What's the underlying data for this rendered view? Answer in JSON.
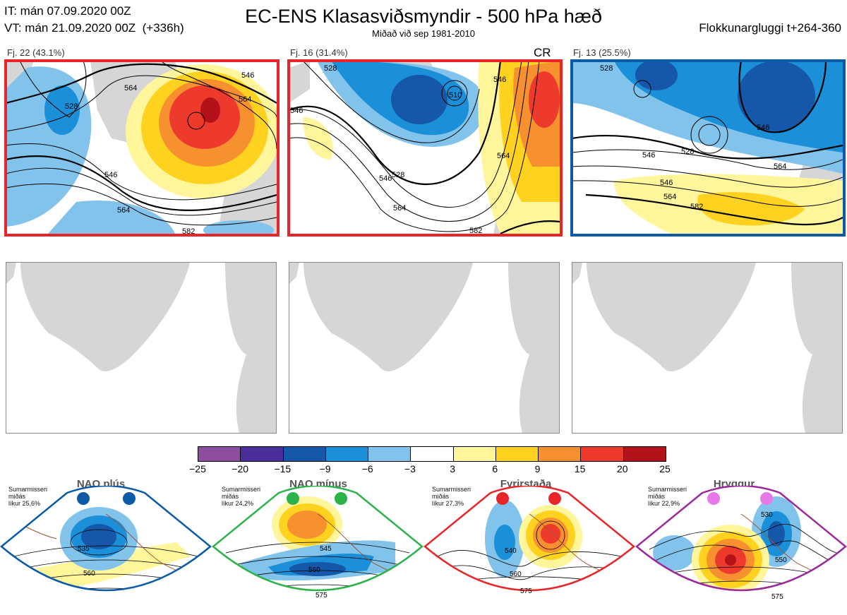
{
  "header": {
    "init_line": "IT: mán 07.09.2020 00Z",
    "valid_line": "VT: mán 21.09.2020 00Z  (+336h)",
    "title": "EC-ENS Klasasviðsmyndir - 500 hPa hæð",
    "subtitle": "Miðað við sep 1981-2010",
    "window": "Flokkunargluggi t+264-360"
  },
  "clusters": [
    {
      "label": "Fj. 22 (43.1%)",
      "border_color": "#e8262a",
      "regime_tag": "",
      "contours": [
        "546",
        "564",
        "546",
        "564",
        "564",
        "582",
        "528"
      ]
    },
    {
      "label": "Fj. 16 (31.4%)",
      "border_color": "#e8262a",
      "regime_tag": "CR",
      "contours": [
        "546",
        "528",
        "510",
        "546",
        "564",
        "546",
        "564",
        "582",
        "528"
      ]
    },
    {
      "label": "Fj. 13 (25.5%)",
      "border_color": "#0a5aa8",
      "regime_tag": "",
      "contours": [
        "546",
        "528",
        "546",
        "564",
        "582",
        "564",
        "546",
        "528"
      ]
    }
  ],
  "colorbar": {
    "ticks": [
      "−25",
      "−20",
      "−15",
      "−9",
      "−6",
      "−3",
      "3",
      "6",
      "9",
      "15",
      "20",
      "25"
    ],
    "colors": [
      "#8e4ea0",
      "#4a2f9a",
      "#1557a8",
      "#1b8fd8",
      "#82c3ec",
      "#ffffff",
      "#fff59a",
      "#ffd21f",
      "#f7902e",
      "#ee3a2c",
      "#b3121a"
    ]
  },
  "regimes": [
    {
      "name": "NAO plús",
      "meta": "Sumarmisseri\nmiðás\nlíkur 25,6%",
      "color": "#0a5aa8",
      "contours": [
        "535",
        "560"
      ]
    },
    {
      "name": "NAO mínus",
      "meta": "Sumarmisseri\nmiðás\nlíkur 24,2%",
      "color": "#2bb34a",
      "contours": [
        "545",
        "560",
        "575"
      ]
    },
    {
      "name": "Fyrirstaða",
      "meta": "Sumarmisseri\nmiðás\nlíkur 27,3%",
      "color": "#e8262a",
      "contours": [
        "540",
        "560",
        "575"
      ]
    },
    {
      "name": "Hryggur",
      "meta": "Sumarmisseri\nmiðás\nlíkur 22,9%",
      "color": "#e878e8",
      "contours": [
        "530",
        "550",
        "575"
      ]
    }
  ]
}
